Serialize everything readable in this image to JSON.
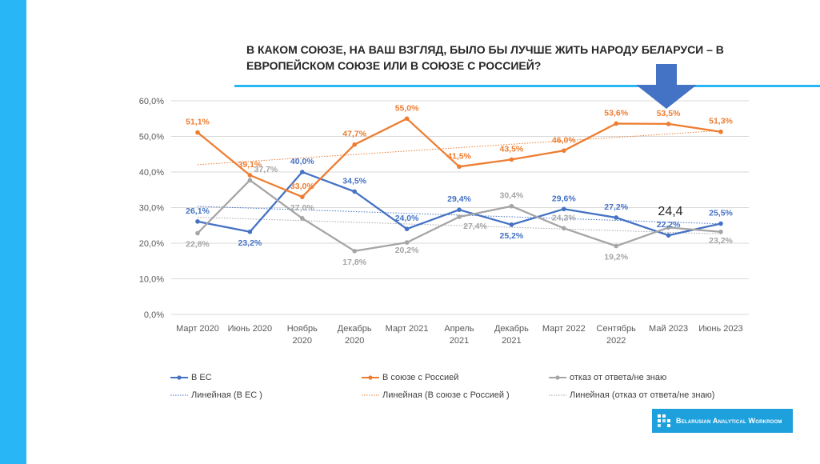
{
  "title": "В КАКОМ СОЮЗЕ, НА ВАШ ВЗГЛЯД, БЫЛО БЫ ЛУЧШЕ ЖИТЬ НАРОДУ БЕЛАРУСИ – В ЕВРОПЕЙСКОМ СОЮЗЕ ИЛИ В СОЮЗЕ С РОССИЕЙ?",
  "colors": {
    "accent": "#29b6f6",
    "arrow": "#4472c4",
    "eu": "#4472c4",
    "russia": "#ed7d31",
    "refusal": "#a5a5a5",
    "grid": "#d9d9d9",
    "logo_bg": "#1ea0dc"
  },
  "annotation": "24,4",
  "logo_text": "Belarusian Analytical Workroom",
  "legend": {
    "eu": "В ЕС",
    "russia": "В союзе с Россией",
    "refusal": "отказ от ответа/не знаю",
    "eu_trend": "Линейная (В ЕС )",
    "russia_trend": "Линейная (В союзе с Россией )",
    "refusal_trend": "Линейная (отказ от ответа/не знаю)"
  },
  "chart_data": {
    "type": "line",
    "categories": [
      [
        "Март 2020"
      ],
      [
        "Июнь 2020"
      ],
      [
        "Ноябрь",
        "2020"
      ],
      [
        "Декабрь",
        "2020"
      ],
      [
        "Март 2021"
      ],
      [
        "Апрель",
        "2021"
      ],
      [
        "Декабрь",
        "2021"
      ],
      [
        "Март 2022"
      ],
      [
        "Сентябрь",
        "2022"
      ],
      [
        "Май 2023"
      ],
      [
        "Июнь 2023"
      ]
    ],
    "ylim": [
      0,
      60
    ],
    "ytick_values": [
      0,
      10,
      20,
      30,
      40,
      50,
      60
    ],
    "ytick_labels": [
      "0,0%",
      "10,0%",
      "20,0%",
      "30,0%",
      "40,0%",
      "50,0%",
      "60,0%"
    ],
    "grid": true,
    "legend_position": "bottom",
    "series": [
      {
        "name": "В ЕС",
        "key": "eu",
        "values": [
          26.1,
          23.2,
          40.0,
          34.5,
          24.0,
          29.4,
          25.2,
          29.6,
          27.2,
          22.2,
          25.5
        ],
        "labels": [
          "26,1%",
          "23,2%",
          "40,0%",
          "34,5%",
          "24,0%",
          "29,4%",
          "25,2%",
          "29,6%",
          "27,2%",
          "22,2%",
          "25,5%"
        ],
        "trendline": true
      },
      {
        "name": "В союзе с Россией",
        "key": "russia",
        "values": [
          51.1,
          39.1,
          33.0,
          47.7,
          55.0,
          41.5,
          43.5,
          46.0,
          53.6,
          53.5,
          51.3
        ],
        "labels": [
          "51,1%",
          "39,1%",
          "33,0%",
          "47,7%",
          "55,0%",
          "41,5%",
          "43,5%",
          "46,0%",
          "53,6%",
          "53,5%",
          "51,3%"
        ],
        "trendline": true
      },
      {
        "name": "отказ от ответа/не знаю",
        "key": "refusal",
        "values": [
          22.8,
          37.7,
          27.0,
          17.8,
          20.2,
          27.4,
          30.4,
          24.2,
          19.2,
          24.4,
          23.2
        ],
        "labels": [
          "22,8%",
          "37,7%",
          "27,0%",
          "17,8%",
          "20,2%",
          "27,4%",
          "30,4%",
          "24,2%",
          "19,2%",
          "",
          "23,2%"
        ],
        "trendline": true
      }
    ]
  }
}
